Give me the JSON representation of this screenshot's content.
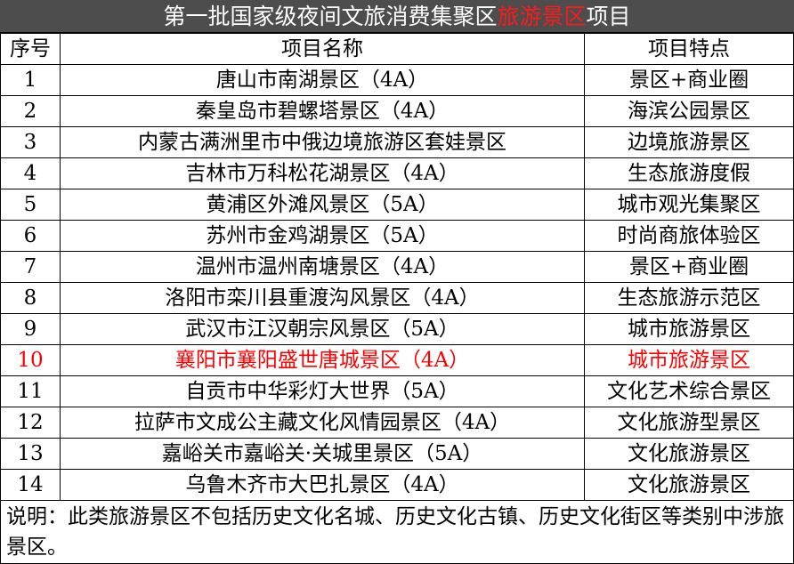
{
  "title": {
    "prefix": "第一批国家级夜间文旅消费集聚区",
    "highlight": "旅游景区",
    "suffix": "项目",
    "highlight_color": "#ff0000"
  },
  "columns": [
    "序号",
    "项目名称",
    "项目特点"
  ],
  "rows": [
    {
      "no": "1",
      "name": "唐山市南湖景区（4A）",
      "feature": "景区+商业圈"
    },
    {
      "no": "2",
      "name": "秦皇岛市碧螺塔景区（4A）",
      "feature": "海滨公园景区"
    },
    {
      "no": "3",
      "name": "内蒙古满洲里市中俄边境旅游区套娃景区",
      "feature": "边境旅游景区"
    },
    {
      "no": "4",
      "name": "吉林市万科松花湖景区（4A）",
      "feature": "生态旅游度假"
    },
    {
      "no": "5",
      "name": "黄浦区外滩风景区（5A）",
      "feature": "城市观光集聚区"
    },
    {
      "no": "6",
      "name": "苏州市金鸡湖景区（5A）",
      "feature": "时尚商旅体验区"
    },
    {
      "no": "7",
      "name": "温州市温州南塘景区（4A）",
      "feature": "景区+商业圈"
    },
    {
      "no": "8",
      "name": "洛阳市栾川县重渡沟风景区（4A）",
      "feature": "生态旅游示范区"
    },
    {
      "no": "9",
      "name": "武汉市江汉朝宗风景区（5A）",
      "feature": "城市旅游景区"
    },
    {
      "no": "10",
      "name": "襄阳市襄阳盛世唐城景区（4A）",
      "feature": "城市旅游景区",
      "highlighted": true
    },
    {
      "no": "11",
      "name": "自贡市中华彩灯大世界（5A）",
      "feature": "文化艺术综合景区"
    },
    {
      "no": "12",
      "name": "拉萨市文成公主藏文化风情园景区（4A）",
      "feature": "文化旅游型景区"
    },
    {
      "no": "13",
      "name": "嘉峪关市嘉峪关·关城里景区（5A）",
      "feature": "文化旅游景区"
    },
    {
      "no": "14",
      "name": "乌鲁木齐市大巴扎景区（4A）",
      "feature": "文化旅游景区"
    }
  ],
  "note": "说明：此类旅游景区不包括历史文化名城、历史文化古镇、历史文化街区等类别中涉旅景区。"
}
